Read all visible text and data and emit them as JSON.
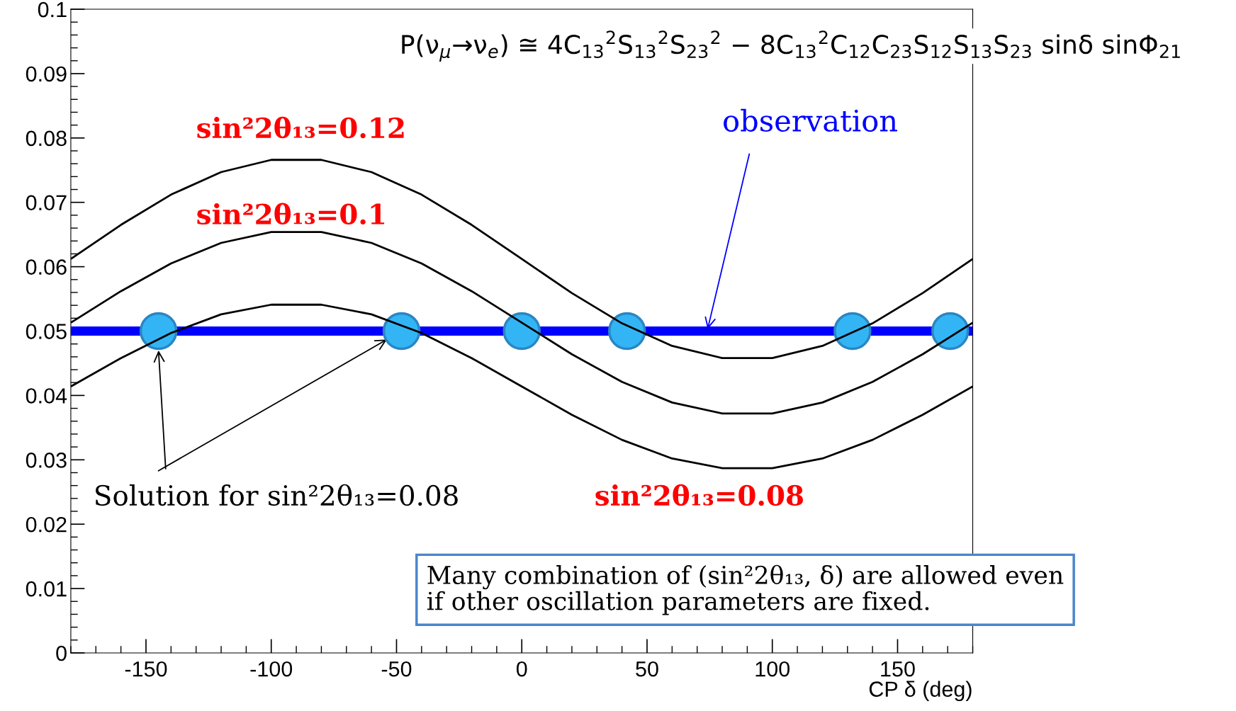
{
  "chart_data": {
    "type": "line",
    "title": "P(ν$_{μ}$→ν$_{e}$) ≅ 4C$_{13}$$^{2}$S$_{13}$$^{2}$S$_{23}$$^{2}$ − 8C$_{13}$$^{2}$C$_{12}$C$_{23}$S$_{12}$S$_{13}$S$_{23}$ sinδ sinΦ$_{21}$",
    "xlabel": "CP δ (deg)",
    "x": [
      -180,
      -160,
      -140,
      -120,
      -100,
      -80,
      -60,
      -40,
      -20,
      0,
      20,
      40,
      60,
      80,
      100,
      120,
      140,
      160,
      180
    ],
    "series": [
      {
        "name": "sin²2θ₁₃=0.12",
        "color": "#000000",
        "values": [
          0.0612,
          0.0665,
          0.0712,
          0.0747,
          0.0766,
          0.0766,
          0.0747,
          0.0712,
          0.0665,
          0.0612,
          0.0559,
          0.0512,
          0.0477,
          0.0458,
          0.0458,
          0.0477,
          0.0512,
          0.0559,
          0.0612
        ]
      },
      {
        "name": "sin²2θ₁₃=0.1",
        "color": "#000000",
        "values": [
          0.0513,
          0.0562,
          0.0605,
          0.0637,
          0.0654,
          0.0654,
          0.0637,
          0.0605,
          0.0562,
          0.0513,
          0.0464,
          0.0421,
          0.0389,
          0.0372,
          0.0372,
          0.0389,
          0.0421,
          0.0464,
          0.0513
        ]
      },
      {
        "name": "sin²2θ₁₃=0.08",
        "color": "#000000",
        "values": [
          0.0414,
          0.0458,
          0.0497,
          0.0526,
          0.0541,
          0.0541,
          0.0526,
          0.0497,
          0.0458,
          0.0414,
          0.037,
          0.0331,
          0.0302,
          0.0287,
          0.0287,
          0.0302,
          0.0331,
          0.037,
          0.0414
        ]
      },
      {
        "name": "observation",
        "color": "#0000ff",
        "x": [
          -180,
          180
        ],
        "values": [
          0.05,
          0.05
        ]
      },
      {
        "type": "scatter",
        "marker": "circle",
        "color": "#33b5f5",
        "x": [
          -145,
          -48,
          0,
          42,
          132,
          171
        ],
        "values": [
          0.05,
          0.05,
          0.05,
          0.05,
          0.05,
          0.05
        ]
      }
    ],
    "annotations": [
      {
        "text": "Solution for sin²2θ₁₃=0.08",
        "x": -145,
        "y": 0.047
      },
      "Many combination of (sin²2θ₁₃, δ) are allowed even\nif other oscillation parameters are fixed."
    ],
    "xlim": [
      -180,
      180
    ],
    "ylim": [
      0,
      0.1
    ],
    "xticks": [
      -150,
      -100,
      -50,
      0,
      50,
      100,
      150
    ],
    "yticks": [
      0,
      0.01,
      0.02,
      0.03,
      0.04,
      0.05,
      0.06,
      0.07,
      0.08,
      0.09,
      0.1
    ],
    "grid": false,
    "legend": false,
    "line_style": "solid"
  }
}
